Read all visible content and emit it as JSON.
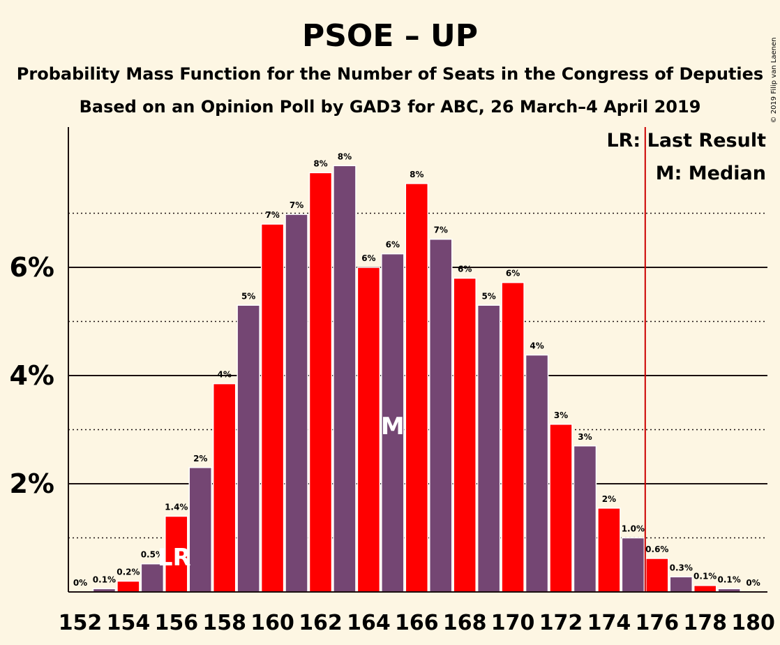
{
  "chart_data": {
    "type": "bar",
    "title": "PSOE – UP",
    "subtitle": "Probability Mass Function for the Number of Seats in the Congress of Deputies",
    "subtitle2": "Based on an Opinion Poll by GAD3 for ABC, 26 March–4 April 2019",
    "copyright": "© 2019 Filip van Laenen",
    "ylim": [
      0,
      8.6
    ],
    "y_ticks_labeled": [
      {
        "value": 2,
        "label": "2%"
      },
      {
        "value": 4,
        "label": "4%"
      },
      {
        "value": 6,
        "label": "6%"
      }
    ],
    "y_gridlines_dotted": [
      1,
      3,
      5,
      7
    ],
    "x_tick_labels": [
      "152",
      "154",
      "156",
      "158",
      "160",
      "162",
      "164",
      "166",
      "168",
      "170",
      "172",
      "174",
      "176",
      "178",
      "180"
    ],
    "seats": [
      152,
      153,
      154,
      155,
      156,
      157,
      158,
      159,
      160,
      161,
      162,
      163,
      164,
      165,
      166,
      167,
      168,
      169,
      170,
      171,
      172,
      173,
      174,
      175,
      176,
      177,
      178,
      179,
      180
    ],
    "values": [
      0,
      0.06,
      0.2,
      0.52,
      1.4,
      2.3,
      3.85,
      5.3,
      6.8,
      6.98,
      7.75,
      7.88,
      6,
      6.25,
      7.55,
      6.52,
      5.8,
      5.3,
      5.72,
      4.38,
      3.1,
      2.7,
      1.55,
      1.0,
      0.62,
      0.28,
      0.12,
      0.06,
      0
    ],
    "value_labels": [
      "0%",
      "0.1%",
      "0.2%",
      "0.5%",
      "1.4%",
      "2%",
      "4%",
      "5%",
      "7%",
      "7%",
      "8%",
      "8%",
      "6%",
      "6%",
      "8%",
      "7%",
      "6%",
      "5%",
      "6%",
      "4%",
      "3%",
      "3%",
      "2%",
      "1.0%",
      "0.6%",
      "0.3%",
      "0.1%",
      "0.1%",
      "0%"
    ],
    "colors": {
      "red": "#ff0000",
      "purple": "#744673",
      "background": "#fdf6e3",
      "last_result_line": "#cc0000"
    },
    "last_result_seat": 156,
    "median_seat": 165,
    "majority_line_seat": 176,
    "last_result_marker": "LR",
    "median_marker": "M",
    "legend": [
      {
        "key": "LR",
        "text": "LR: Last Result"
      },
      {
        "key": "M",
        "text": "M: Median"
      }
    ]
  }
}
